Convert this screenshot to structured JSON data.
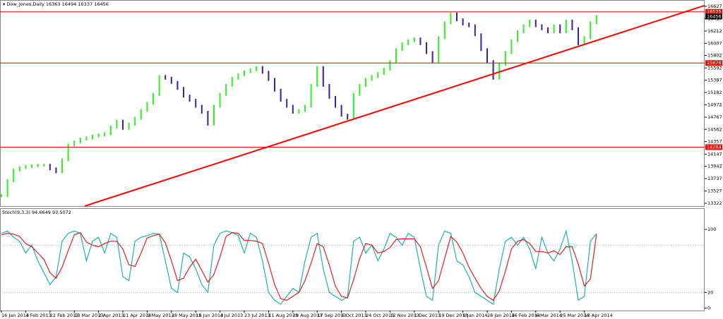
{
  "chart_data": [
    {
      "type": "price",
      "title": "Dow_Jones,Daily",
      "header_values": [
        16363,
        16494,
        16337,
        16456
      ],
      "x": [
        "16 Jan 2013",
        null,
        null,
        null,
        "4 Feb 2013",
        null,
        null,
        null,
        "22 Feb 2013",
        null,
        null,
        null,
        "13 Mar 2013",
        null,
        null,
        null,
        "2 Apr 2013",
        null,
        null,
        null,
        "21 Apr 2013",
        null,
        null,
        null,
        "9 May 2013",
        null,
        null,
        null,
        "28 May 2013",
        null,
        null,
        null,
        "16 Jun 2013",
        null,
        null,
        null,
        "4 Jul 2013",
        null,
        null,
        null,
        "23 Jul 2013",
        null,
        null,
        null,
        "11 Aug 2013",
        null,
        null,
        null,
        "29 Aug 2013",
        null,
        null,
        null,
        "17 Sep 2013",
        null,
        null,
        null,
        "6 Oct 2013",
        null,
        null,
        null,
        "24 Oct 2013",
        null,
        null,
        null,
        "12 Nov 2013",
        null,
        null,
        null,
        "1 Dec 2013",
        null,
        null,
        null,
        "19 Dec 2013",
        null,
        null,
        null,
        "9 Jan 2014",
        null,
        null,
        null,
        "28 Jan 2014",
        null,
        null,
        null,
        "16 Feb 2014",
        null,
        null,
        null,
        "6 Mar 2014",
        null,
        null,
        null,
        "25 Mar 2014",
        null,
        null,
        null,
        "13 Apr 2014",
        null,
        null
      ],
      "series": [
        {
          "up_color": "#33ee22",
          "down_color": "#3b1fa8",
          "values": [
            13450,
            13700,
            13880,
            13920,
            13940,
            13950,
            13960,
            13960,
            13900,
            13850,
            14050,
            14300,
            14350,
            14400,
            14420,
            14450,
            14470,
            14490,
            14600,
            14700,
            14580,
            14650,
            14750,
            14880,
            15000,
            15150,
            15450,
            15420,
            15350,
            15250,
            15120,
            15050,
            14950,
            14850,
            14650,
            14950,
            15150,
            15300,
            15420,
            15480,
            15530,
            15560,
            15600,
            15520,
            15400,
            15220,
            15050,
            14950,
            14850,
            14880,
            14950,
            15300,
            15600,
            15300,
            15100,
            14950,
            14800,
            14750,
            15150,
            15300,
            15400,
            15450,
            15500,
            15570,
            15700,
            15900,
            16000,
            16050,
            16080,
            16000,
            15850,
            15700,
            16100,
            16350,
            16500,
            16400,
            16330,
            16300,
            16150,
            15900,
            15700,
            15420,
            15650,
            15850,
            16050,
            16200,
            16300,
            16380,
            16300,
            16250,
            16200,
            16300,
            16200,
            16380,
            16250,
            16000,
            16100,
            16350,
            16456
          ]
        }
      ],
      "ylim": [
        13275,
        16721
      ],
      "yticks": [
        16627,
        16417,
        16212,
        16007,
        15802,
        15592,
        15387,
        15182,
        14972,
        14767,
        14562,
        14357,
        14147,
        13942,
        13737,
        13527,
        13322
      ],
      "levels": [
        16535,
        15676,
        14264
      ],
      "level_color": "#ff0000",
      "current": 16456,
      "trendline": [
        13275,
        16640
      ]
    },
    {
      "type": "line",
      "title": "Stoch(9,3,3)",
      "header_values": [
        94.6649,
        93.5072
      ],
      "series": [
        {
          "color": "#20b2aa",
          "values": [
            95,
            98,
            90,
            85,
            70,
            80,
            60,
            45,
            30,
            40,
            85,
            95,
            98,
            95,
            60,
            85,
            90,
            70,
            95,
            90,
            40,
            35,
            85,
            90,
            92,
            95,
            94,
            60,
            25,
            20,
            70,
            65,
            50,
            30,
            20,
            80,
            95,
            98,
            96,
            92,
            70,
            95,
            90,
            60,
            20,
            10,
            5,
            15,
            25,
            20,
            60,
            90,
            95,
            50,
            20,
            15,
            10,
            14,
            85,
            90,
            70,
            80,
            60,
            75,
            95,
            90,
            80,
            95,
            90,
            50,
            15,
            10,
            80,
            98,
            95,
            60,
            55,
            40,
            20,
            15,
            10,
            5,
            50,
            85,
            90,
            80,
            90,
            75,
            50,
            90,
            70,
            60,
            75,
            98,
            60,
            10,
            15,
            85,
            94.6649
          ]
        },
        {
          "color": "#e02020",
          "values": [
            93,
            95,
            94,
            91,
            82,
            78,
            70,
            62,
            45,
            38,
            52,
            73,
            93,
            96,
            84,
            80,
            78,
            82,
            85,
            85,
            75,
            55,
            53,
            70,
            89,
            92,
            94,
            83,
            60,
            35,
            38,
            52,
            62,
            48,
            33,
            43,
            65,
            91,
            96,
            95,
            86,
            86,
            85,
            82,
            57,
            30,
            12,
            10,
            15,
            20,
            35,
            57,
            82,
            78,
            55,
            28,
            15,
            13,
            36,
            63,
            82,
            80,
            70,
            72,
            77,
            87,
            88,
            88,
            88,
            78,
            52,
            25,
            35,
            63,
            91,
            84,
            70,
            52,
            38,
            25,
            15,
            10,
            22,
            47,
            75,
            85,
            87,
            82,
            72,
            72,
            70,
            73,
            68,
            78,
            78,
            56,
            28,
            37,
            93.5072
          ]
        }
      ],
      "ylim": [
        -3,
        126
      ],
      "yticks": [
        100,
        20,
        0
      ],
      "levels": [
        80,
        20
      ]
    }
  ]
}
